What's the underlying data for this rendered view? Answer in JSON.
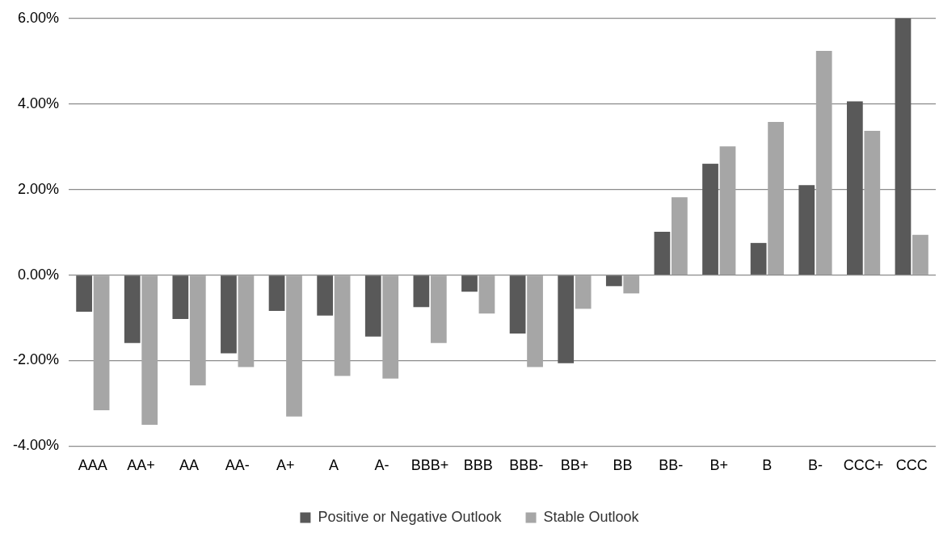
{
  "chart_data": {
    "type": "bar",
    "categories": [
      "AAA",
      "AA+",
      "AA",
      "AA-",
      "A+",
      "A",
      "A-",
      "BBB+",
      "BBB",
      "BBB-",
      "BB+",
      "BB",
      "BB-",
      "B+",
      "B",
      "B-",
      "CCC+",
      "CCC"
    ],
    "series": [
      {
        "name": "Positive or Negative Outlook",
        "color": "#595959",
        "values": [
          -0.86,
          -1.59,
          -1.03,
          -1.83,
          -0.84,
          -0.95,
          -1.44,
          -0.75,
          -0.39,
          -1.37,
          -2.06,
          -0.26,
          1.01,
          2.6,
          0.75,
          2.1,
          4.06,
          6.0
        ]
      },
      {
        "name": "Stable Outlook",
        "color": "#a6a6a6",
        "values": [
          -3.16,
          -3.5,
          -2.58,
          -2.15,
          -3.31,
          -2.36,
          -2.42,
          -1.59,
          -0.9,
          -2.15,
          -0.79,
          -0.43,
          1.82,
          3.01,
          3.58,
          5.24,
          3.37,
          0.94
        ]
      }
    ],
    "ylim": [
      -4,
      6
    ],
    "yticks": [
      {
        "value": -4,
        "label": "-4.00%"
      },
      {
        "value": -2,
        "label": "-2.00%"
      },
      {
        "value": 0,
        "label": "0.00%"
      },
      {
        "value": 2,
        "label": "2.00%"
      },
      {
        "value": 4,
        "label": "4.00%"
      },
      {
        "value": 6,
        "label": "6.00%"
      }
    ],
    "grid": "y",
    "legend": "bottom"
  }
}
